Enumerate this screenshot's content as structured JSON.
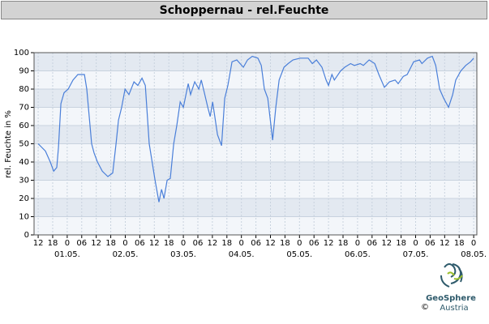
{
  "chart_data": {
    "type": "line",
    "title": "Schoppernau - rel.Feuchte",
    "y_label": "rel. Feuchte in %",
    "color": "#4a7fd9",
    "grid": true,
    "x": [
      0,
      3,
      5,
      6.4,
      7.7,
      8.4,
      9.4,
      10.7,
      12.4,
      14.4,
      16.4,
      19.1,
      20.1,
      22.1,
      23.1,
      24.5,
      26.5,
      28.8,
      30.8,
      32.2,
      33.2,
      34.5,
      35.9,
      37.5,
      39.6,
      41.2,
      42.9,
      44.3,
      45.9,
      48.3,
      49.9,
      51,
      52,
      53.3,
      54.6,
      56,
      57.3,
      58.7,
      60,
      62,
      63,
      64.7,
      66.4,
      67.4,
      68.7,
      70.1,
      71.1,
      72.1,
      74.1,
      75.8,
      77.1,
      78.4,
      80.1,
      82.1,
      84.8,
      86.5,
      88.5,
      90.8,
      92.2,
      93.5,
      94.9,
      96.9,
      98.2,
      99.6,
      101.6,
      103.3,
      105.3,
      108.3,
      111.6,
      113.3,
      115,
      117.3,
      119,
      120,
      121.4,
      122.4,
      125,
      126.7,
      129.1,
      130.7,
      133.1,
      134.4,
      136.8,
      139.1,
      140.8,
      143.1,
      145.2,
      147.5,
      148.8,
      150.9,
      152.5,
      155.2,
      157.6,
      158.6,
      160.9,
      162.9,
      164.3,
      165.9,
      167.6,
      169.6,
      171.3,
      172.6,
      174.7,
      176.7,
      178.7,
      180
    ],
    "values": [
      50,
      46,
      40,
      35,
      37,
      48,
      72,
      78,
      80,
      85,
      88,
      88,
      80,
      50,
      45,
      40,
      35,
      32,
      34,
      50,
      63,
      70,
      80,
      77,
      84,
      82,
      86,
      82,
      50,
      30,
      18,
      25,
      20,
      30,
      31,
      50,
      60,
      73,
      70,
      83,
      77,
      84,
      80,
      85,
      78,
      70,
      65,
      73,
      55,
      49,
      75,
      82,
      95,
      96,
      92,
      96,
      98,
      97,
      93,
      80,
      75,
      52,
      70,
      85,
      92,
      94,
      96,
      97,
      97,
      94,
      96,
      92,
      85,
      82,
      88,
      85,
      90,
      92,
      94,
      93,
      94,
      93,
      96,
      94,
      88,
      81,
      84,
      85,
      83,
      87,
      88,
      95,
      96,
      94,
      97,
      98,
      93,
      80,
      75,
      70,
      77,
      85,
      90,
      93,
      95,
      97
    ],
    "xlim": [
      -1.7,
      181.3
    ],
    "xticks": [
      {
        "value": 0,
        "label": "12"
      },
      {
        "value": 6,
        "label": "18"
      },
      {
        "value": 12,
        "label": "0"
      },
      {
        "value": 18,
        "label": "06"
      },
      {
        "value": 24,
        "label": "12"
      },
      {
        "value": 30,
        "label": "18"
      },
      {
        "value": 36,
        "label": "0"
      },
      {
        "value": 42,
        "label": "06"
      },
      {
        "value": 48,
        "label": "12"
      },
      {
        "value": 54,
        "label": "18"
      },
      {
        "value": 60,
        "label": "0"
      },
      {
        "value": 66,
        "label": "06"
      },
      {
        "value": 72,
        "label": "12"
      },
      {
        "value": 78,
        "label": "18"
      },
      {
        "value": 84,
        "label": "0"
      },
      {
        "value": 90,
        "label": "06"
      },
      {
        "value": 96,
        "label": "12"
      },
      {
        "value": 102,
        "label": "18"
      },
      {
        "value": 108,
        "label": "0"
      },
      {
        "value": 114,
        "label": "06"
      },
      {
        "value": 120,
        "label": "12"
      },
      {
        "value": 126,
        "label": "18"
      },
      {
        "value": 132,
        "label": "0"
      },
      {
        "value": 138,
        "label": "06"
      },
      {
        "value": 144,
        "label": "12"
      },
      {
        "value": 150,
        "label": "18"
      },
      {
        "value": 156,
        "label": "0"
      },
      {
        "value": 162,
        "label": "06"
      },
      {
        "value": 168,
        "label": "12"
      },
      {
        "value": 174,
        "label": "18"
      },
      {
        "value": 180,
        "label": "0"
      }
    ],
    "x_dates": [
      {
        "value": 12,
        "label": "01.05."
      },
      {
        "value": 36,
        "label": "02.05."
      },
      {
        "value": 60,
        "label": "03.05."
      },
      {
        "value": 84,
        "label": "04.05."
      },
      {
        "value": 108,
        "label": "05.05."
      },
      {
        "value": 132,
        "label": "06.05."
      },
      {
        "value": 156,
        "label": "07.05."
      },
      {
        "value": 180,
        "label": "08.05."
      }
    ],
    "ylim": [
      0,
      100
    ],
    "yticks": [
      0,
      10,
      20,
      30,
      40,
      50,
      60,
      70,
      80,
      90,
      100
    ]
  },
  "logo": {
    "name": "GeoSphere",
    "sub": "Austria",
    "copyright": "©"
  }
}
